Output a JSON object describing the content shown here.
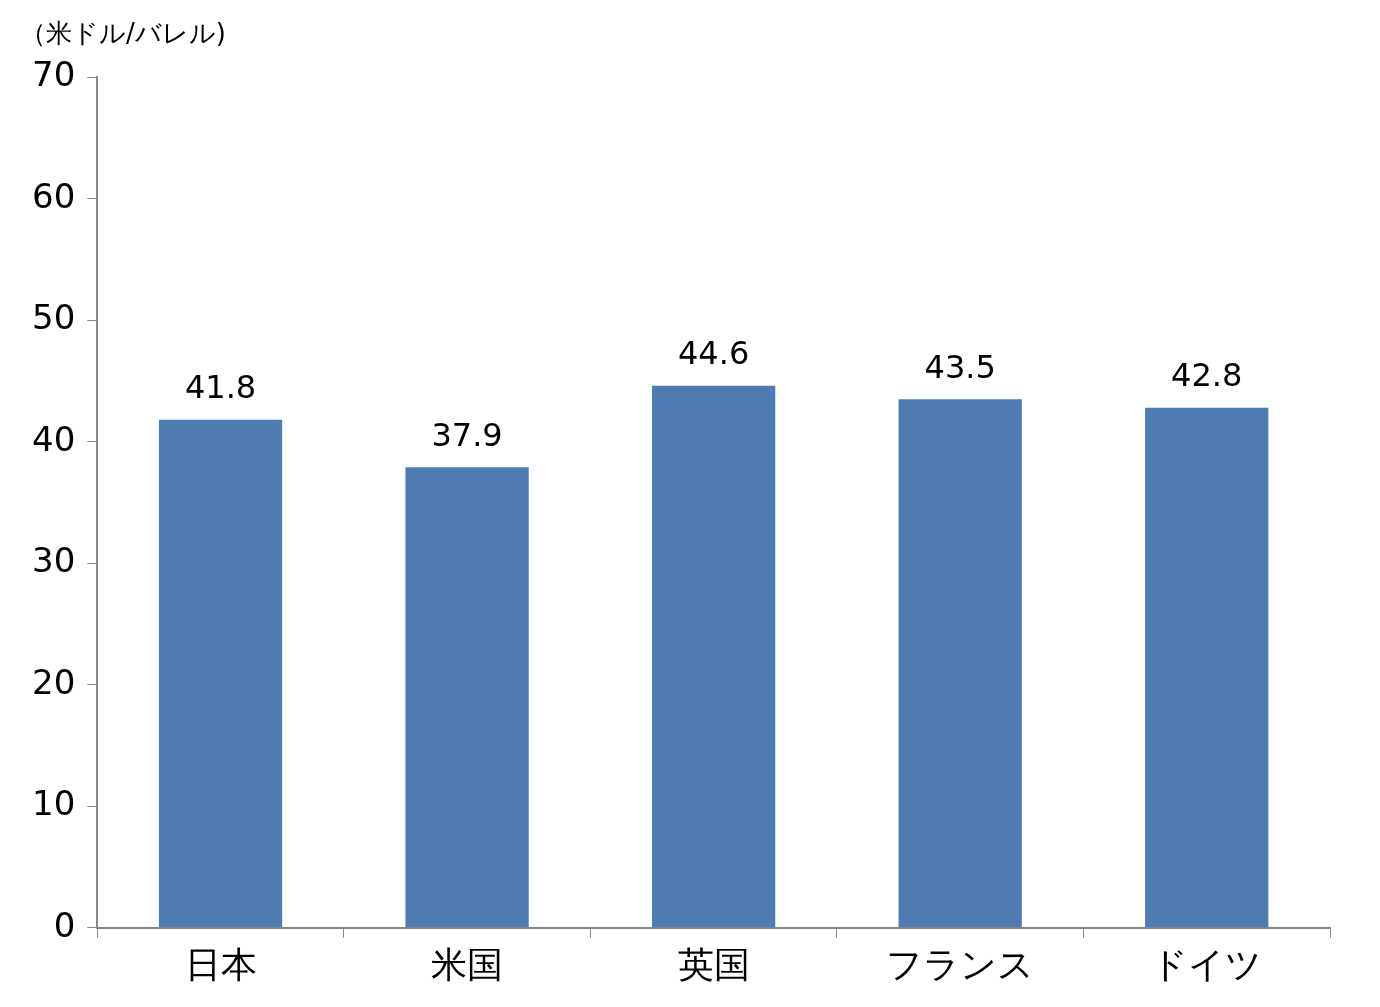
{
  "chart_data": {
    "type": "bar",
    "y_label": "（米ドル/バレル)",
    "categories": [
      "日本",
      "米国",
      "英国",
      "フランス",
      "ドイツ"
    ],
    "values": [
      41.8,
      37.9,
      44.6,
      43.5,
      42.8
    ],
    "color": "#4f7bb3",
    "ylim": [
      0,
      70
    ],
    "yticks": [
      0,
      10,
      20,
      30,
      40,
      50,
      60,
      70
    ],
    "grid": false,
    "data_labels": true
  }
}
